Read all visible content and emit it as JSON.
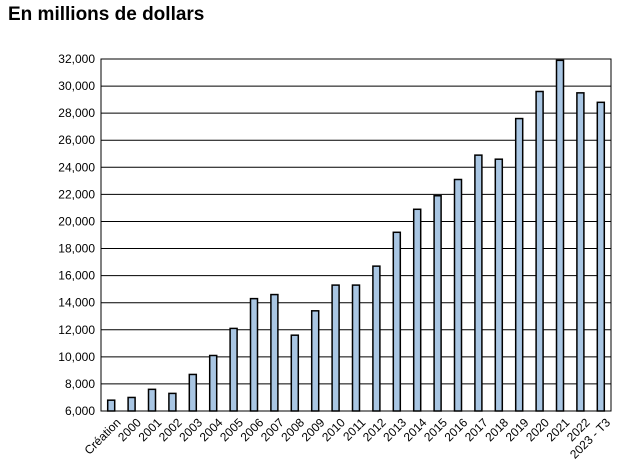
{
  "chart_data": {
    "type": "bar",
    "title": "En millions de dollars",
    "xlabel": "",
    "ylabel": "",
    "ylim": [
      6000,
      32000
    ],
    "ytick_step": 2000,
    "ytick_labels": [
      "6,000",
      "8,000",
      "10,000",
      "12,000",
      "14,000",
      "16,000",
      "18,000",
      "20,000",
      "22,000",
      "24,000",
      "26,000",
      "28,000",
      "30,000",
      "32,000"
    ],
    "grid": true,
    "legend": "none",
    "categories": [
      "Création",
      "2000",
      "2001",
      "2002",
      "2003",
      "2004",
      "2005",
      "2006",
      "2007",
      "2008",
      "2009",
      "2010",
      "2011",
      "2012",
      "2013",
      "2014",
      "2015",
      "2016",
      "2017",
      "2018",
      "2019",
      "2020",
      "2021",
      "2022",
      "2023 - T3"
    ],
    "values": [
      6800,
      7000,
      7600,
      7300,
      8700,
      10100,
      12100,
      14300,
      14600,
      11600,
      13400,
      15300,
      15300,
      16700,
      19200,
      20900,
      21900,
      23100,
      24900,
      24600,
      27600,
      29600,
      31900,
      29500,
      28800
    ],
    "colors": {
      "bar_fill": "#a9c6e3",
      "bar_stroke": "#000000",
      "grid": "#000000"
    }
  }
}
